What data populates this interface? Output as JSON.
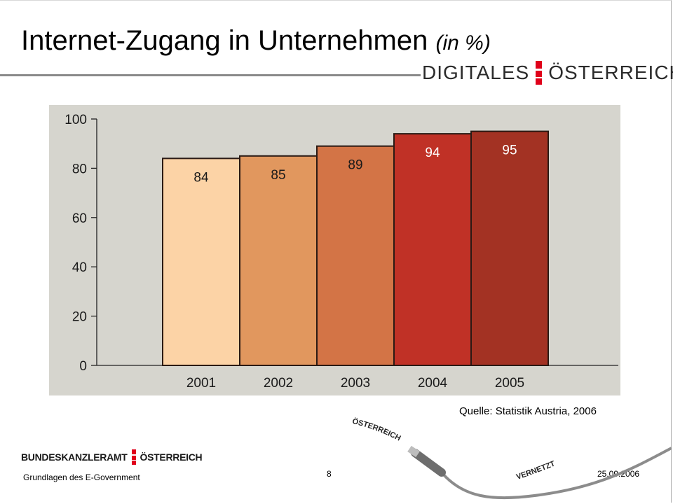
{
  "title": {
    "main": "Internet-Zugang in Unternehmen",
    "sub": "(in %)"
  },
  "brand_top": {
    "left": "DIGITALES",
    "right": "ÖSTERREICH"
  },
  "chart_data": {
    "type": "bar",
    "categories": [
      "2001",
      "2002",
      "2003",
      "2004",
      "2005"
    ],
    "values": [
      84,
      85,
      89,
      94,
      95
    ],
    "data_labels": [
      "84",
      "85",
      "89",
      "94",
      "95"
    ],
    "colors": [
      "#fcd3a6",
      "#e1975e",
      "#d37446",
      "#c03126",
      "#a33223"
    ],
    "ylim": [
      0,
      100
    ],
    "yticks": [
      0,
      20,
      40,
      60,
      80,
      100
    ],
    "grid": false,
    "plot_background": "#d6d5ce",
    "title": "",
    "xlabel": "",
    "ylabel": ""
  },
  "source": "Quelle: Statistik Austria, 2006",
  "footer": {
    "brand_left": "BUNDESKANZLERAMT",
    "brand_right": "ÖSTERREICH",
    "subtitle": "Grundlagen des E-Government",
    "page": "8",
    "date": "25.09.2006"
  },
  "decoration": {
    "word_top": "ÖSTERREICH",
    "word_bottom": "VERNETZT",
    "icon": "usb-cable-icon"
  },
  "colors": {
    "accent_red": "#e0001a",
    "rule_gray": "#8a8a8a"
  }
}
